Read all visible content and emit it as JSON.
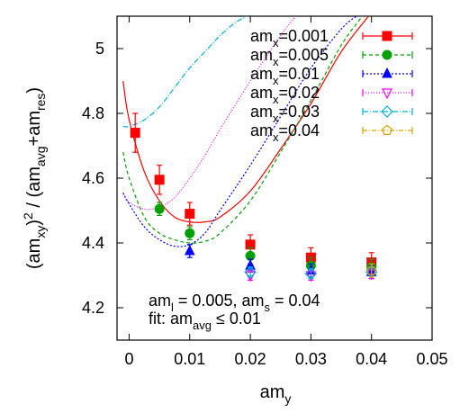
{
  "chart_data": {
    "type": "scatter",
    "xlabel": "am",
    "xlabel_sub": "y",
    "ylabel_parts": [
      {
        "t": "(am",
        "s": "base"
      },
      {
        "t": "xy",
        "s": "sub"
      },
      {
        "t": ")",
        "s": "base"
      },
      {
        "t": "2",
        "s": "sup"
      },
      {
        "t": " / (am",
        "s": "base"
      },
      {
        "t": "avg",
        "s": "sub"
      },
      {
        "t": "+am",
        "s": "base"
      },
      {
        "t": "res",
        "s": "sub"
      },
      {
        "t": ")",
        "s": "base"
      }
    ],
    "xlim": [
      -0.002,
      0.05
    ],
    "ylim": [
      4.1,
      5.1
    ],
    "x_ticks": [
      {
        "value": 0,
        "label": "0"
      },
      {
        "value": 0.01,
        "label": "0.01"
      },
      {
        "value": 0.02,
        "label": "0.02"
      },
      {
        "value": 0.03,
        "label": "0.03"
      },
      {
        "value": 0.04,
        "label": "0.04"
      },
      {
        "value": 0.05,
        "label": "0.05"
      }
    ],
    "y_ticks": [
      {
        "value": 4.2,
        "label": "4.2"
      },
      {
        "value": 4.4,
        "label": "4.4"
      },
      {
        "value": 4.6,
        "label": "4.6"
      },
      {
        "value": 4.8,
        "label": "4.8"
      },
      {
        "value": 5.0,
        "label": "5"
      }
    ],
    "legend_position": "top-right",
    "series": [
      {
        "name_base": "am",
        "name_sub": "x",
        "name_value": "=0.001",
        "color": "#ff0000",
        "dash": "",
        "marker": "square-filled",
        "points": [
          {
            "x": 0.001,
            "y": 4.74,
            "err": 0.06
          },
          {
            "x": 0.005,
            "y": 4.595,
            "err": 0.045
          },
          {
            "x": 0.01,
            "y": 4.49,
            "err": 0.035
          },
          {
            "x": 0.02,
            "y": 4.395,
            "err": 0.03
          },
          {
            "x": 0.03,
            "y": 4.355,
            "err": 0.03
          },
          {
            "x": 0.04,
            "y": 4.34,
            "err": 0.03
          }
        ],
        "fit_x": [
          -0.001,
          0.0,
          0.0025,
          0.005,
          0.0075,
          0.01,
          0.0125,
          0.015,
          0.02,
          0.025,
          0.03,
          0.035,
          0.0395
        ],
        "fit_y": [
          4.9,
          4.78,
          4.62,
          4.53,
          4.48,
          4.465,
          4.465,
          4.48,
          4.56,
          4.69,
          4.83,
          4.99,
          5.1
        ]
      },
      {
        "name_base": "am",
        "name_sub": "x",
        "name_value": "=0.005",
        "color": "#00a000",
        "dash": "4,3",
        "marker": "circle-filled",
        "points": [
          {
            "x": 0.005,
            "y": 4.505,
            "err": 0.02
          },
          {
            "x": 0.01,
            "y": 4.43,
            "err": 0.02
          },
          {
            "x": 0.02,
            "y": 4.36,
            "err": 0.025
          },
          {
            "x": 0.03,
            "y": 4.33,
            "err": 0.025
          },
          {
            "x": 0.04,
            "y": 4.325,
            "err": 0.025
          }
        ],
        "fit_x": [
          -0.001,
          0.0,
          0.0025,
          0.005,
          0.0075,
          0.01,
          0.0125,
          0.015,
          0.02,
          0.025,
          0.03,
          0.035,
          0.0385
        ],
        "fit_y": [
          4.68,
          4.6,
          4.48,
          4.43,
          4.41,
          4.4,
          4.405,
          4.43,
          4.53,
          4.68,
          4.84,
          5.01,
          5.1
        ]
      },
      {
        "name_base": "am",
        "name_sub": "x",
        "name_value": "=0.01",
        "color": "#0000ff",
        "dash": "2,2",
        "marker": "triangle-up-filled",
        "points": [
          {
            "x": 0.01,
            "y": 4.375,
            "err": 0.02
          },
          {
            "x": 0.02,
            "y": 4.33,
            "err": 0.02
          },
          {
            "x": 0.03,
            "y": 4.315,
            "err": 0.02
          },
          {
            "x": 0.04,
            "y": 4.31,
            "err": 0.02
          }
        ],
        "fit_x": [
          -0.001,
          0.0,
          0.0025,
          0.005,
          0.0075,
          0.01,
          0.0125,
          0.015,
          0.02,
          0.025,
          0.03,
          0.035,
          0.0375
        ],
        "fit_y": [
          4.555,
          4.52,
          4.45,
          4.41,
          4.39,
          4.395,
          4.43,
          4.5,
          4.64,
          4.79,
          4.94,
          5.06,
          5.1
        ]
      },
      {
        "name_base": "am",
        "name_sub": "x",
        "name_value": "=0.02",
        "color": "#ff00ff",
        "dash": "1,2",
        "marker": "triangle-down-open",
        "points": [
          {
            "x": 0.02,
            "y": 4.3,
            "err": 0.015
          },
          {
            "x": 0.03,
            "y": 4.3,
            "err": 0.015
          },
          {
            "x": 0.04,
            "y": 4.305,
            "err": 0.015
          }
        ],
        "fit_x": [
          -0.001,
          0.0,
          0.0025,
          0.005,
          0.0075,
          0.01,
          0.0125,
          0.015,
          0.02,
          0.025,
          0.0275
        ],
        "fit_y": [
          4.55,
          4.525,
          4.505,
          4.51,
          4.54,
          4.6,
          4.67,
          4.75,
          4.9,
          5.04,
          5.1
        ]
      },
      {
        "name_base": "am",
        "name_sub": "x",
        "name_value": "=0.03",
        "color": "#00b0e0",
        "dash": "6,2,1,2",
        "marker": "diamond-open",
        "points": [
          {
            "x": 0.02,
            "y": 4.31,
            "err": 0.015
          },
          {
            "x": 0.03,
            "y": 4.305,
            "err": 0.015
          },
          {
            "x": 0.04,
            "y": 4.31,
            "err": 0.015
          }
        ],
        "fit_x": [
          -0.001,
          0.0,
          0.0025,
          0.005,
          0.0075,
          0.01,
          0.0125,
          0.015,
          0.0175,
          0.0195
        ],
        "fit_y": [
          4.76,
          4.76,
          4.78,
          4.82,
          4.88,
          4.94,
          4.99,
          5.04,
          5.08,
          5.1
        ]
      },
      {
        "name_base": "am",
        "name_sub": "x",
        "name_value": "=0.04",
        "color": "#e0a000",
        "dash": "5,2,1,2",
        "marker": "pentagon-open",
        "points": [
          {
            "x": 0.04,
            "y": 4.315,
            "err": 0.02
          }
        ],
        "fit_x": [],
        "fit_y": []
      }
    ],
    "annotation_lines": [
      [
        {
          "t": "am",
          "s": "base"
        },
        {
          "t": "l",
          "s": "sub"
        },
        {
          "t": " = 0.005, am",
          "s": "base"
        },
        {
          "t": "s",
          "s": "sub"
        },
        {
          "t": " = 0.04",
          "s": "base"
        }
      ],
      [
        {
          "t": "fit: am",
          "s": "base"
        },
        {
          "t": "avg",
          "s": "sub"
        },
        {
          "t": " ≤ 0.01",
          "s": "base"
        }
      ]
    ]
  }
}
